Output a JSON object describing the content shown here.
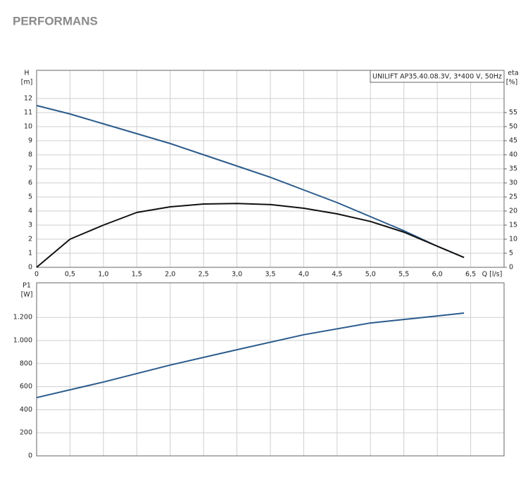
{
  "header": {
    "title": "PERFORMANS"
  },
  "chart_data": [
    {
      "type": "line",
      "legend_text": "UNILIFT AP35.40.08.3V, 3*400 V, 50Hz",
      "xlabel": "Q [l/s]",
      "ylabel": "H",
      "yunit": "[m]",
      "y2label": "eta",
      "y2unit": "[%]",
      "x": [
        0,
        0.5,
        1,
        1.5,
        2,
        2.5,
        3,
        3.5,
        4,
        4.5,
        5,
        5.5,
        6,
        6.4
      ],
      "series": [
        {
          "color": "#2b5b8c",
          "values": [
            11.5,
            10.9,
            10.2,
            9.5,
            8.8,
            8.0,
            7.2,
            6.4,
            5.5,
            4.6,
            3.6,
            2.6,
            1.5,
            0.7
          ]
        },
        {
          "color": "#111111",
          "axis": "y2",
          "values": [
            0,
            10,
            15,
            19.5,
            21.5,
            22.5,
            22.7,
            22.3,
            21,
            19,
            16.3,
            12.5,
            7.5,
            3.5
          ]
        }
      ],
      "xlim": [
        0,
        7
      ],
      "xticks": [
        0,
        {
          "value": 0.5,
          "label": "0,5"
        },
        {
          "value": 1,
          "label": "1,0"
        },
        {
          "value": 1.5,
          "label": "1,5"
        },
        {
          "value": 2,
          "label": "2,0"
        },
        {
          "value": 2.5,
          "label": "2,5"
        },
        {
          "value": 3,
          "label": "3,0"
        },
        {
          "value": 3.5,
          "label": "3,5"
        },
        {
          "value": 4,
          "label": "4,0"
        },
        {
          "value": 4.5,
          "label": "4,5"
        },
        {
          "value": 5,
          "label": "5,0"
        },
        {
          "value": 5.5,
          "label": "5,5"
        },
        {
          "value": 6,
          "label": "6,0"
        },
        {
          "value": 6.5,
          "label": "6,5"
        }
      ],
      "ylim": [
        0,
        14
      ],
      "yticks": [
        0,
        1,
        2,
        3,
        4,
        5,
        6,
        7,
        8,
        9,
        10,
        11,
        12
      ],
      "y2lim": [
        0,
        70
      ],
      "y2ticks": [
        0,
        5,
        10,
        15,
        20,
        25,
        30,
        35,
        40,
        45,
        50,
        55
      ],
      "grid": true
    },
    {
      "type": "line",
      "ylabel": "P1",
      "yunit": "[W]",
      "x": [
        0,
        1,
        2,
        3,
        4,
        5,
        6,
        6.4
      ],
      "series": [
        {
          "color": "#2b5b8c",
          "values": [
            505,
            640,
            787,
            920,
            1050,
            1152,
            1213,
            1238
          ]
        }
      ],
      "xlim": [
        0,
        7
      ],
      "xticks": [
        0,
        0.5,
        1,
        1.5,
        2,
        2.5,
        3,
        3.5,
        4,
        4.5,
        5,
        5.5,
        6,
        6.5
      ],
      "ylim": [
        0,
        1500
      ],
      "yticks": [
        0,
        200,
        400,
        600,
        800,
        {
          "value": 1000,
          "label": "1.000"
        },
        {
          "value": 1200,
          "label": "1.200"
        }
      ],
      "grid": true
    }
  ]
}
